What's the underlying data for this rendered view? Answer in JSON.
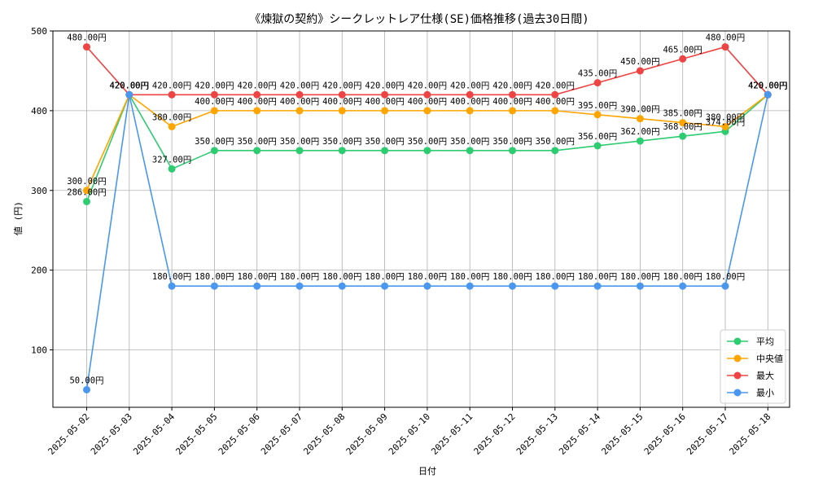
{
  "chart_data": {
    "type": "line",
    "title": "《煉獄の契約》シークレットレア仕様(SE)価格推移(過去30日間)",
    "xlabel": "日付",
    "ylabel": "値 (円)",
    "ylim": [
      28,
      500
    ],
    "yticks": [
      100,
      200,
      300,
      400,
      500
    ],
    "grid": true,
    "legend_position": "lower-right",
    "value_suffix": "円",
    "categories": [
      "2025-05-02",
      "2025-05-03",
      "2025-05-04",
      "2025-05-05",
      "2025-05-06",
      "2025-05-07",
      "2025-05-08",
      "2025-05-09",
      "2025-05-10",
      "2025-05-11",
      "2025-05-12",
      "2025-05-13",
      "2025-05-14",
      "2025-05-15",
      "2025-05-16",
      "2025-05-17",
      "2025-05-18"
    ],
    "series": [
      {
        "name": "平均",
        "color": "#2ecc71",
        "values": [
          286,
          420,
          327,
          350,
          350,
          350,
          350,
          350,
          350,
          350,
          350,
          350,
          356,
          362,
          368,
          374,
          420
        ]
      },
      {
        "name": "中央値",
        "color": "#ffa500",
        "values": [
          300,
          420,
          380,
          400,
          400,
          400,
          400,
          400,
          400,
          400,
          400,
          400,
          395,
          390,
          385,
          380,
          420
        ]
      },
      {
        "name": "最大",
        "color": "#ef4444",
        "values": [
          480,
          420,
          420,
          420,
          420,
          420,
          420,
          420,
          420,
          420,
          420,
          420,
          435,
          450,
          465,
          480,
          420
        ]
      },
      {
        "name": "最小",
        "color": "#4a97f0",
        "values": [
          50,
          420,
          180,
          180,
          180,
          180,
          180,
          180,
          180,
          180,
          180,
          180,
          180,
          180,
          180,
          180,
          420
        ]
      }
    ]
  }
}
